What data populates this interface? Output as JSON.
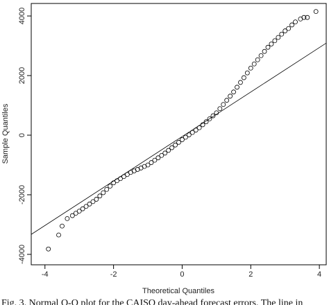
{
  "chart_data": {
    "type": "qq",
    "xlabel": "Theoretical Quantiles",
    "ylabel": "Sample Quantiles",
    "caption": "Fig. 3. Normal Q-Q plot for the CAISO day-ahead forecast errors. The line in",
    "xlim": [
      -4.4,
      4.2
    ],
    "ylim": [
      -4350,
      4420
    ],
    "xticks": [
      -4,
      -2,
      0,
      2,
      4
    ],
    "yticks": [
      -4000,
      -2000,
      0,
      2000,
      4000
    ],
    "points": {
      "x": [
        -3.9,
        -3.6,
        -3.5,
        -3.35,
        -3.2,
        -3.1,
        -3.0,
        -2.9,
        -2.8,
        -2.7,
        -2.6,
        -2.5,
        -2.4,
        -2.3,
        -2.2,
        -2.1,
        -2.0,
        -1.9,
        -1.8,
        -1.7,
        -1.6,
        -1.5,
        -1.4,
        -1.3,
        -1.2,
        -1.1,
        -1.0,
        -0.9,
        -0.8,
        -0.7,
        -0.6,
        -0.5,
        -0.4,
        -0.3,
        -0.2,
        -0.1,
        0,
        0.1,
        0.2,
        0.3,
        0.4,
        0.5,
        0.6,
        0.7,
        0.8,
        0.9,
        1.0,
        1.1,
        1.2,
        1.3,
        1.4,
        1.5,
        1.6,
        1.7,
        1.8,
        1.9,
        2.0,
        2.1,
        2.2,
        2.3,
        2.4,
        2.5,
        2.6,
        2.7,
        2.8,
        2.9,
        3.0,
        3.1,
        3.2,
        3.3,
        3.45,
        3.55,
        3.65,
        3.9
      ],
      "y": [
        -3820,
        -3350,
        -3050,
        -2800,
        -2700,
        -2620,
        -2550,
        -2470,
        -2390,
        -2310,
        -2230,
        -2150,
        -2040,
        -1930,
        -1820,
        -1710,
        -1600,
        -1530,
        -1460,
        -1390,
        -1320,
        -1250,
        -1200,
        -1150,
        -1100,
        -1050,
        -1000,
        -920,
        -840,
        -760,
        -680,
        -600,
        -510,
        -420,
        -330,
        -240,
        -150,
        -70,
        10,
        90,
        170,
        250,
        350,
        450,
        550,
        650,
        750,
        890,
        1030,
        1170,
        1310,
        1450,
        1610,
        1770,
        1930,
        2090,
        2250,
        2390,
        2530,
        2670,
        2810,
        2950,
        3060,
        3170,
        3280,
        3390,
        3500,
        3580,
        3700,
        3800,
        3900,
        3950,
        3950,
        4150
      ]
    },
    "reference_line": {
      "x": [
        -4.4,
        4.2
      ],
      "y": [
        -3330,
        3090
      ]
    }
  }
}
